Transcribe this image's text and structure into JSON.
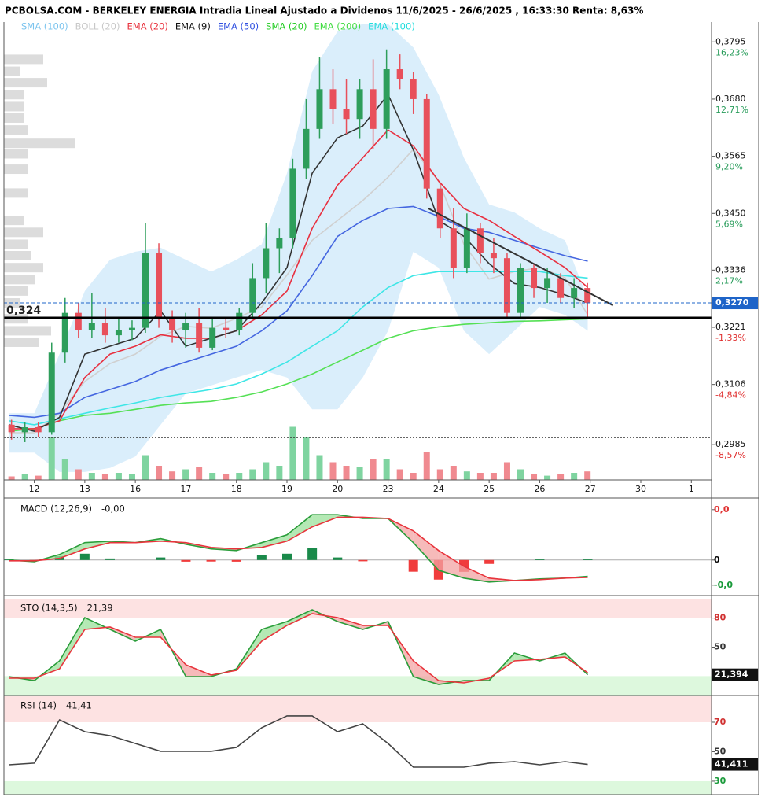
{
  "chart_data": {
    "type": "candlestick",
    "title": "PCBOLSA.COM - BERKELEY ENERGIA Intradia Lineal Ajustado a Dividenos 11/6/2025 - 26/6/2025 , 16:33:30 Renta: 8,63%",
    "legend": [
      {
        "name": "SMA (100)",
        "color": "#7cc4ee"
      },
      {
        "name": "BOLL (20)",
        "color": "#c8c8c8"
      },
      {
        "name": "EMA (20)",
        "color": "#e8303c"
      },
      {
        "name": "EMA (9)",
        "color": "#111111"
      },
      {
        "name": "EMA (50)",
        "color": "#3050e0"
      },
      {
        "name": "SMA (20)",
        "color": "#22cc22"
      },
      {
        "name": "EMA (200)",
        "color": "#44dd44"
      },
      {
        "name": "EMA (100)",
        "color": "#22dddd"
      }
    ],
    "xlim": [
      -0.6,
      13.4
    ],
    "day_labels": {
      "x": [
        0,
        1,
        2,
        3,
        4,
        5,
        6,
        7,
        8,
        9,
        10,
        11,
        12,
        13
      ],
      "categories": [
        "12",
        "13",
        "16",
        "17",
        "18",
        "19",
        "20",
        "23",
        "24",
        "25",
        "26",
        "27",
        "30",
        "1"
      ]
    },
    "ylim": [
      0.2914,
      0.3835
    ],
    "yticks": [
      {
        "value": 0.3795,
        "label": "0,3795",
        "pct": "16,23%",
        "color": "#2a9d5c"
      },
      {
        "value": 0.368,
        "label": "0,3680",
        "pct": "12,71%",
        "color": "#2a9d5c"
      },
      {
        "value": 0.3565,
        "label": "0,3565",
        "pct": "9,20%",
        "color": "#2a9d5c"
      },
      {
        "value": 0.345,
        "label": "0,3450",
        "pct": "5,69%",
        "color": "#2a9d5c"
      },
      {
        "value": 0.3336,
        "label": "0,3336",
        "pct": "2,17%",
        "color": "#2a9d5c"
      },
      {
        "value": 0.3221,
        "label": "0,3221",
        "pct": "-1,33%",
        "color": "#e03030"
      },
      {
        "value": 0.3106,
        "label": "0,3106",
        "pct": "-4,84%",
        "color": "#e03030"
      },
      {
        "value": 0.2985,
        "label": "0,2985",
        "pct": "-8,57%",
        "color": "#e03030"
      }
    ],
    "x": [
      -0.45,
      -0.185,
      0.08,
      0.345,
      0.61,
      0.875,
      1.14,
      1.405,
      1.67,
      1.935,
      2.2,
      2.465,
      2.73,
      2.995,
      3.26,
      3.525,
      3.79,
      4.055,
      4.32,
      4.585,
      4.85,
      5.115,
      5.38,
      5.645,
      5.91,
      6.175,
      6.44,
      6.705,
      6.97,
      7.235,
      7.5,
      7.765,
      8.03,
      8.295,
      8.56,
      8.825,
      9.09,
      9.355,
      9.62,
      9.885,
      10.15,
      10.415,
      10.68,
      10.945
    ],
    "open": [
      0.3025,
      0.301,
      0.302,
      0.301,
      0.317,
      0.325,
      0.3215,
      0.323,
      0.3205,
      0.3215,
      0.322,
      0.337,
      0.324,
      0.3215,
      0.323,
      0.318,
      0.322,
      0.3215,
      0.325,
      0.332,
      0.338,
      0.34,
      0.354,
      0.362,
      0.37,
      0.366,
      0.364,
      0.37,
      0.362,
      0.374,
      0.372,
      0.368,
      0.35,
      0.342,
      0.334,
      0.342,
      0.337,
      0.336,
      0.325,
      0.334,
      0.33,
      0.332,
      0.328,
      0.33
    ],
    "high": [
      0.3035,
      0.303,
      0.303,
      0.319,
      0.328,
      0.327,
      0.329,
      0.326,
      0.324,
      0.3235,
      0.343,
      0.339,
      0.3255,
      0.325,
      0.326,
      0.324,
      0.324,
      0.326,
      0.335,
      0.343,
      0.342,
      0.356,
      0.368,
      0.3765,
      0.374,
      0.372,
      0.372,
      0.376,
      0.378,
      0.377,
      0.3735,
      0.369,
      0.351,
      0.346,
      0.345,
      0.343,
      0.34,
      0.337,
      0.335,
      0.335,
      0.334,
      0.333,
      0.332,
      0.331
    ],
    "low": [
      0.2995,
      0.299,
      0.3,
      0.3005,
      0.315,
      0.32,
      0.32,
      0.319,
      0.319,
      0.3195,
      0.321,
      0.322,
      0.319,
      0.318,
      0.317,
      0.3175,
      0.32,
      0.3205,
      0.324,
      0.329,
      0.333,
      0.338,
      0.352,
      0.36,
      0.363,
      0.361,
      0.36,
      0.358,
      0.36,
      0.37,
      0.365,
      0.348,
      0.34,
      0.332,
      0.333,
      0.335,
      0.333,
      0.324,
      0.324,
      0.328,
      0.327,
      0.327,
      0.326,
      0.324
    ],
    "close": [
      0.301,
      0.302,
      0.301,
      0.317,
      0.325,
      0.3215,
      0.323,
      0.3205,
      0.3215,
      0.322,
      0.337,
      0.324,
      0.3215,
      0.323,
      0.318,
      0.322,
      0.3215,
      0.325,
      0.332,
      0.338,
      0.34,
      0.354,
      0.362,
      0.37,
      0.366,
      0.364,
      0.37,
      0.362,
      0.374,
      0.372,
      0.368,
      0.35,
      0.342,
      0.334,
      0.342,
      0.337,
      0.336,
      0.325,
      0.334,
      0.33,
      0.332,
      0.328,
      0.33,
      0.327
    ],
    "up_color": "#2e9e5b",
    "down_color": "#e8505b",
    "volume": [
      5,
      8,
      6,
      60,
      30,
      15,
      10,
      8,
      10,
      8,
      35,
      20,
      12,
      15,
      18,
      10,
      8,
      10,
      15,
      25,
      20,
      75,
      60,
      35,
      25,
      20,
      18,
      30,
      30,
      15,
      10,
      40,
      15,
      20,
      12,
      10,
      10,
      25,
      15,
      8,
      6,
      8,
      10,
      12
    ],
    "volume_lim": [
      0,
      100
    ],
    "volume_colors": [
      "#7fd4a0",
      "#f08a90"
    ],
    "profile": {
      "prices": [
        0.376,
        0.3736,
        0.3713,
        0.3689,
        0.3665,
        0.3642,
        0.3618,
        0.3591,
        0.357,
        0.3539,
        0.3491,
        0.3436,
        0.3412,
        0.3388,
        0.3365,
        0.3341,
        0.3317,
        0.3294,
        0.327,
        0.3238,
        0.3214,
        0.3191
      ],
      "values": [
        50,
        20,
        55,
        25,
        25,
        25,
        30,
        90,
        30,
        30,
        30,
        25,
        50,
        30,
        35,
        50,
        40,
        30,
        20,
        30,
        60,
        45
      ],
      "color": "#dcdcdc"
    },
    "profile_lim": [
      0,
      100
    ],
    "ind_x": [
      -0.5,
      0,
      0.5,
      1,
      1.5,
      2,
      2.5,
      3,
      3.5,
      4,
      4.5,
      5,
      5.5,
      6,
      6.5,
      7,
      7.5,
      8,
      8.5,
      9,
      9.5,
      10,
      10.5,
      10.95
    ],
    "band": {
      "color": "#d4ebfa",
      "upper": [
        0.3048,
        0.3048,
        0.3167,
        0.3294,
        0.3357,
        0.3373,
        0.3381,
        0.3357,
        0.3333,
        0.3357,
        0.3388,
        0.3531,
        0.3736,
        0.3816,
        0.3831,
        0.3831,
        0.3784,
        0.3689,
        0.3562,
        0.3468,
        0.3452,
        0.342,
        0.3396,
        0.3278
      ],
      "lower": [
        0.2969,
        0.2969,
        0.293,
        0.293,
        0.2938,
        0.2961,
        0.3025,
        0.3088,
        0.3104,
        0.312,
        0.3135,
        0.312,
        0.3056,
        0.3056,
        0.312,
        0.3214,
        0.3373,
        0.3341,
        0.3214,
        0.3167,
        0.3214,
        0.3262,
        0.3246,
        0.3214
      ]
    },
    "lines": [
      {
        "color": "#d0d0d0",
        "values": [
          0.3009,
          0.3009,
          0.3049,
          0.3112,
          0.3148,
          0.3167,
          0.3203,
          0.3223,
          0.3219,
          0.3239,
          0.3262,
          0.3326,
          0.3396,
          0.3436,
          0.3476,
          0.3523,
          0.3579,
          0.3515,
          0.3388,
          0.3318,
          0.3333,
          0.3341,
          0.3321,
          0.3246
        ]
      },
      {
        "color": "#55e055",
        "values": [
          0.3012,
          0.3017,
          0.3033,
          0.3044,
          0.3048,
          0.3056,
          0.3064,
          0.3069,
          0.3072,
          0.308,
          0.3091,
          0.3107,
          0.3127,
          0.3151,
          0.3175,
          0.3199,
          0.3214,
          0.3222,
          0.3227,
          0.323,
          0.3233,
          0.3234,
          0.3236,
          0.3238
        ]
      },
      {
        "color": "#3ee6e6",
        "values": [
          0.3033,
          0.3025,
          0.3037,
          0.3048,
          0.3059,
          0.3069,
          0.308,
          0.3088,
          0.3096,
          0.3107,
          0.3127,
          0.3151,
          0.3183,
          0.3214,
          0.3262,
          0.3301,
          0.3325,
          0.3333,
          0.3333,
          0.3333,
          0.3333,
          0.3333,
          0.3325,
          0.332
        ]
      },
      {
        "color": "#4466e0",
        "values": [
          0.3044,
          0.304,
          0.3048,
          0.308,
          0.3096,
          0.3112,
          0.3135,
          0.3151,
          0.3167,
          0.3183,
          0.3214,
          0.3254,
          0.3325,
          0.3404,
          0.3436,
          0.346,
          0.3464,
          0.3444,
          0.342,
          0.3412,
          0.3396,
          0.338,
          0.3365,
          0.3354
        ]
      },
      {
        "color": "#e83040",
        "values": [
          0.3017,
          0.3017,
          0.3033,
          0.312,
          0.3167,
          0.3183,
          0.3206,
          0.3199,
          0.3199,
          0.3214,
          0.3246,
          0.3294,
          0.342,
          0.3507,
          0.3562,
          0.3618,
          0.3586,
          0.3515,
          0.346,
          0.3436,
          0.3404,
          0.3373,
          0.3341,
          0.3301
        ]
      },
      {
        "color": "#333333",
        "values": [
          0.3025,
          0.3012,
          0.304,
          0.3167,
          0.3183,
          0.3199,
          0.3254,
          0.3183,
          0.3199,
          0.3214,
          0.327,
          0.3341,
          0.3531,
          0.3602,
          0.3626,
          0.3689,
          0.3578,
          0.3436,
          0.3404,
          0.3349,
          0.3309,
          0.3301,
          0.3286,
          0.327
        ]
      }
    ],
    "trendline": {
      "x": [
        7.8,
        11.45
      ],
      "values": [
        0.346,
        0.3265
      ],
      "color": "#333333"
    },
    "levels": [
      {
        "value": 0.324,
        "label": "0,324"
      }
    ],
    "last_price": {
      "value": 0.327,
      "label": "0,3270",
      "color": "#1e64c8"
    },
    "dotted_level": 0.2999,
    "macd": {
      "title": "MACD (12,26,9)",
      "current": "-0,00",
      "ylim": [
        -0.0027,
        0.0048
      ],
      "yticks": [
        {
          "value": 0.004,
          "label": "0,0",
          "color": "#e03030"
        },
        {
          "value": 0,
          "label": "0",
          "color": "#000000"
        },
        {
          "value": -0.002,
          "label": "-0,0",
          "color": "#1a9a3a"
        }
      ],
      "zero_line": 0,
      "histogram": [
        6e-05,
        -7e-05,
        0.00031,
        0.0005,
        0.00012,
        0,
        0.0002,
        -0.00013,
        -0.00012,
        -0.00013,
        0.00038,
        0.0005,
        0.00097,
        0.0002,
        -0.0001,
        0,
        -0.00093,
        -0.00156,
        -0.00094,
        -0.00031,
        0,
        6e-05,
        0,
        8e-05
      ],
      "hist_colors": [
        "#1a8a4a",
        "#f03c3c"
      ],
      "fill_colors": [
        "#9be29b",
        "#f3a3a3"
      ],
      "lines": [
        {
          "color": "#2a9d3a",
          "values": [
            0,
            -0.00013,
            0.00044,
            0.00138,
            0.0015,
            0.00138,
            0.0017,
            0.00125,
            0.00088,
            0.00075,
            0.00138,
            0.002,
            0.0036,
            0.0036,
            0.0033,
            0.0033,
            0.00138,
            -0.00081,
            -0.00144,
            -0.00175,
            -0.00163,
            -0.0015,
            -0.00144,
            -0.0013
          ]
        },
        {
          "color": "#e8343c",
          "values": [
            -6e-05,
            -6e-05,
            0.00013,
            0.00088,
            0.00138,
            0.00138,
            0.0015,
            0.00138,
            0.001,
            0.00088,
            0.001,
            0.0015,
            0.00263,
            0.0034,
            0.0034,
            0.0033,
            0.00231,
            0.00075,
            -0.0005,
            -0.00144,
            -0.00163,
            -0.00156,
            -0.00144,
            -0.00138
          ]
        }
      ]
    },
    "sto": {
      "title": "STO (14,3,5)",
      "current": "21,39",
      "box": "21,394",
      "ylim": [
        0,
        100
      ],
      "yticks": [
        80,
        50
      ],
      "tick_colors": [
        "#d03030",
        "#333333"
      ],
      "zones": [
        {
          "range": [
            80,
            100
          ],
          "color": "#fde2e2"
        },
        {
          "range": [
            0,
            20
          ],
          "color": "#ddf8dd"
        }
      ],
      "fill_colors": [
        "#9be29b",
        "#f3a3a3"
      ],
      "lines": [
        {
          "color": "#2a9d3a",
          "values": [
            19.5,
            15.4,
            35.8,
            80.5,
            68.3,
            56.1,
            68.3,
            19.5,
            19.5,
            27.6,
            68.3,
            76.4,
            88.6,
            76.4,
            68.3,
            76.4,
            19.5,
            11.4,
            15.4,
            15.4,
            43.9,
            35.8,
            43.9,
            21.39
          ]
        },
        {
          "color": "#e8343c",
          "values": [
            17.9,
            17.9,
            27.6,
            68.3,
            70.7,
            60.2,
            60.2,
            31.7,
            21.1,
            26,
            56.1,
            72.4,
            84.6,
            80.5,
            72.4,
            72.4,
            35.8,
            15.4,
            13,
            17.9,
            35.8,
            37.4,
            39.8,
            23.6
          ]
        }
      ]
    },
    "rsi": {
      "title": "RSI (14)",
      "current": "41,41",
      "box": "41,411",
      "ylim": [
        20.9,
        87.6
      ],
      "yticks": [
        70,
        50,
        30
      ],
      "tick_colors": [
        "#d03030",
        "#333333",
        "#1a9a3a"
      ],
      "zones": [
        {
          "range": [
            70,
            87.6
          ],
          "color": "#fde2e2"
        },
        {
          "range": [
            20.9,
            30
          ],
          "color": "#ddf8dd"
        }
      ],
      "lines": [
        {
          "color": "#444444",
          "values": [
            41.2,
            42.3,
            71.6,
            63.6,
            60.9,
            55.6,
            50.3,
            50.3,
            50.3,
            52.9,
            66.3,
            74.3,
            74.3,
            63.6,
            68.9,
            55.6,
            39.6,
            39.6,
            39.6,
            42.3,
            43.3,
            41.2,
            43.3,
            41.41
          ]
        }
      ]
    }
  }
}
